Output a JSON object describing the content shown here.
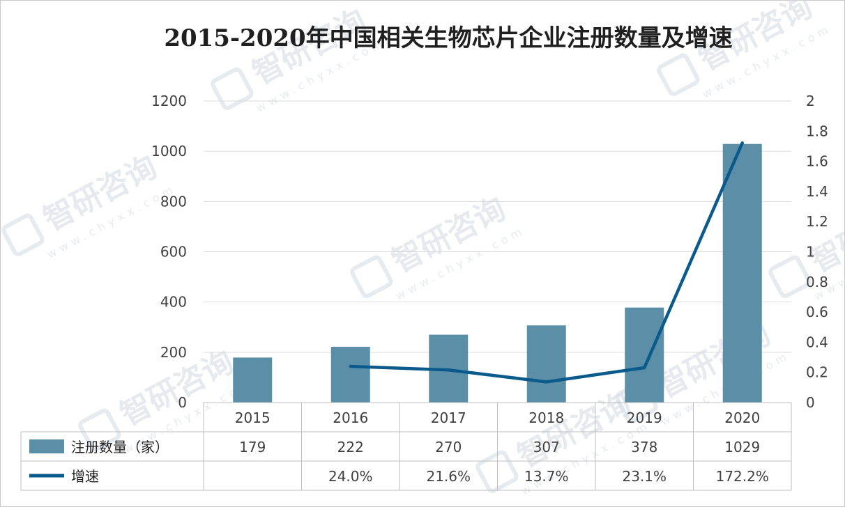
{
  "chart_data": {
    "type": "bar",
    "title": "2015-2020年中国相关生物芯片企业注册数量及增速",
    "categories": [
      "2015",
      "2016",
      "2017",
      "2018",
      "2019",
      "2020"
    ],
    "series": [
      {
        "name": "注册数量（家）",
        "type": "bar",
        "axis": "left",
        "color": "#5b8fa8",
        "values": [
          179,
          222,
          270,
          307,
          378,
          1029
        ]
      },
      {
        "name": "增速",
        "type": "line",
        "axis": "right",
        "color": "#0b5a8c",
        "values": [
          null,
          0.24,
          0.216,
          0.137,
          0.231,
          1.722
        ],
        "labels": [
          "",
          "24.0%",
          "21.6%",
          "13.7%",
          "23.1%",
          "172.2%"
        ]
      }
    ],
    "y_left": {
      "ylim": [
        0,
        1200
      ],
      "ticks": [
        "0",
        "200",
        "400",
        "600",
        "800",
        "1000",
        "1200"
      ]
    },
    "y_right": {
      "ylim": [
        0,
        2
      ],
      "ticks": [
        "0",
        "0.2",
        "0.4",
        "0.6",
        "0.8",
        "1",
        "1.2",
        "1.4",
        "1.6",
        "1.8",
        "2"
      ]
    },
    "gridlines": true,
    "data_table": true
  },
  "watermark": {
    "brand": "智研咨询",
    "url": "www.chyxx.com"
  }
}
